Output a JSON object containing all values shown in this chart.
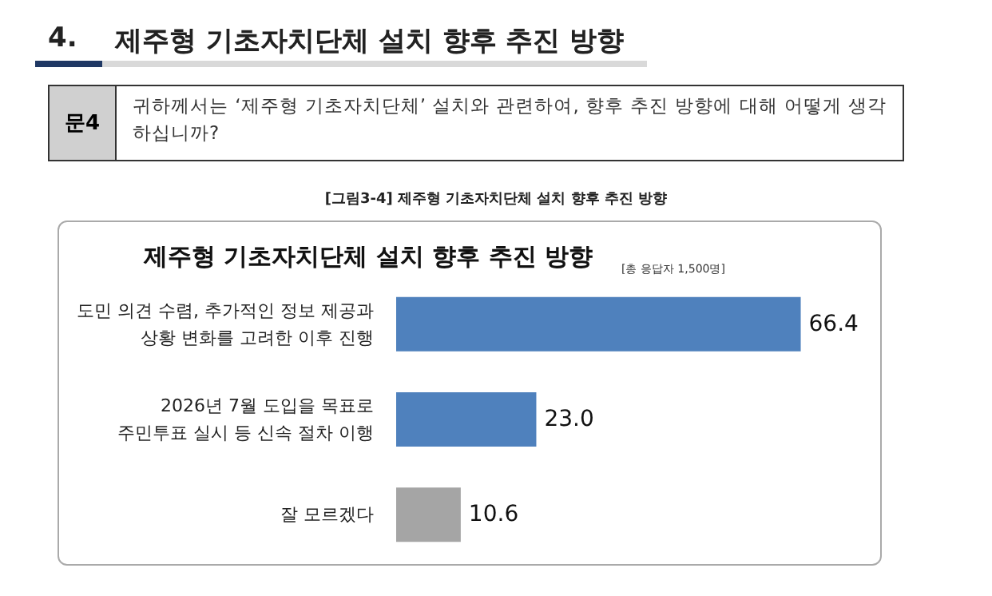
{
  "chart_data": {
    "type": "bar",
    "orientation": "horizontal",
    "title": "제주형 기초자치단체 설치 향후 추진 방향",
    "subtitle": "[총 응답자 1,500명]",
    "annotations": [
      "4.",
      "제주형 기초자치단체 설치 향후 추진 방향",
      "문4",
      "귀하께서는 ‘제주형 기초자치단체’ 설치와 관련하여, 향후 추진 방향에 대해 어떻게 생각하십니까?",
      "[그림3-4] 제주형 기초자치단체 설치 향후 추진 방향"
    ],
    "categories": [
      "도민 의견 수렴, 추가적인 정보 제공과\n상황 변화를 고려한 이후 진행",
      "2026년 7월 도입을 목표로\n주민투표 실시 등 신속 절차 이행",
      "잘 모르겠다"
    ],
    "values": [
      66.4,
      23.0,
      10.6
    ],
    "colors": [
      "#4f81bd",
      "#4f81bd",
      "#a5a5a5"
    ],
    "value_labels": [
      "66.4",
      "23.0",
      "10.6"
    ]
  }
}
